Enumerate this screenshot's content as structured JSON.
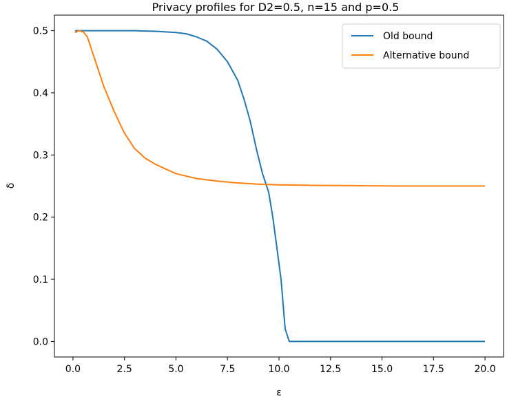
{
  "chart_data": {
    "type": "line",
    "title": "Privacy profiles for D2=0.5, n=15 and p=0.5",
    "xlabel": "ε",
    "ylabel": "δ",
    "xlim": [
      -0.9,
      20.9
    ],
    "ylim": [
      -0.025,
      0.525
    ],
    "xticks": [
      0.0,
      2.5,
      5.0,
      7.5,
      10.0,
      12.5,
      15.0,
      17.5,
      20.0
    ],
    "xtick_labels": [
      "0.0",
      "2.5",
      "5.0",
      "7.5",
      "10.0",
      "12.5",
      "15.0",
      "17.5",
      "20.0"
    ],
    "yticks": [
      0.0,
      0.1,
      0.2,
      0.3,
      0.4,
      0.5
    ],
    "ytick_labels": [
      "0.0",
      "0.1",
      "0.2",
      "0.3",
      "0.4",
      "0.5"
    ],
    "grid": false,
    "legend_position": "top-right",
    "series": [
      {
        "name": "Old bound",
        "color": "#1f77b4",
        "x": [
          0.1,
          1.0,
          2.0,
          3.0,
          4.0,
          5.0,
          5.5,
          6.0,
          6.5,
          7.0,
          7.5,
          8.0,
          8.3,
          8.6,
          8.9,
          9.2,
          9.5,
          9.7,
          9.9,
          10.1,
          10.3,
          10.5,
          11.0,
          12.0,
          14.0,
          16.0,
          18.0,
          20.0
        ],
        "y": [
          0.5,
          0.5,
          0.5,
          0.5,
          0.499,
          0.497,
          0.495,
          0.49,
          0.483,
          0.47,
          0.45,
          0.42,
          0.39,
          0.355,
          0.31,
          0.27,
          0.24,
          0.2,
          0.15,
          0.1,
          0.02,
          0.0,
          0.0,
          0.0,
          0.0,
          0.0,
          0.0,
          0.0
        ]
      },
      {
        "name": "Alternative bound",
        "color": "#ff7f0e",
        "x": [
          0.1,
          0.3,
          0.5,
          0.7,
          1.0,
          1.5,
          2.0,
          2.5,
          3.0,
          3.5,
          4.0,
          5.0,
          6.0,
          7.0,
          8.0,
          9.0,
          10.0,
          12.0,
          14.0,
          16.0,
          18.0,
          20.0
        ],
        "y": [
          0.497,
          0.5,
          0.498,
          0.49,
          0.46,
          0.41,
          0.37,
          0.335,
          0.31,
          0.295,
          0.285,
          0.27,
          0.262,
          0.258,
          0.255,
          0.253,
          0.252,
          0.251,
          0.2505,
          0.25,
          0.25,
          0.25
        ]
      }
    ]
  }
}
